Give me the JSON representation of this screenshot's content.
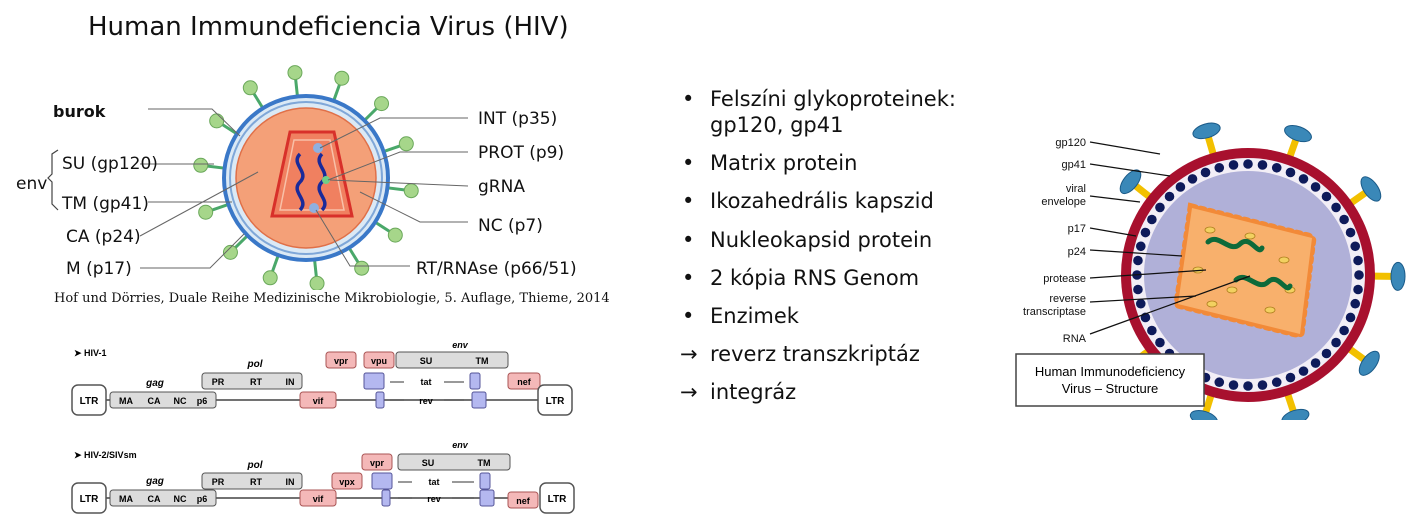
{
  "title": "Human Immundeficiencia  Virus (HIV)",
  "virus_diagram": {
    "labels": {
      "burok": "burok",
      "env": "env",
      "su": "SU (gp120)",
      "tm": "TM (gp41)",
      "ca": "CA (p24)",
      "m": "M (p17)",
      "int": "INT (p35)",
      "prot": "PROT (p9)",
      "grna": "gRNA",
      "nc": "NC (p7)",
      "rt": "RT/RNAse (p66/51)"
    },
    "citation": "Hof und Dörries, Duale Reihe Medizinische Mikrobiologie, 5. Auflage, Thieme, 2014"
  },
  "genome_maps": [
    {
      "name": "HIV-1",
      "genes": {
        "ltr_left": "LTR",
        "gag": "gag",
        "ma": "MA",
        "ca": "CA",
        "nc": "NC",
        "p6": "p6",
        "pol": "pol",
        "pr": "PR",
        "rt": "RT",
        "in": "IN",
        "vif": "vif",
        "vpr": "vpr",
        "vpu": "vpu",
        "env": "env",
        "su": "SU",
        "tm": "TM",
        "tat": "tat",
        "rev": "rev",
        "nef": "nef",
        "ltr_right": "LTR"
      }
    },
    {
      "name": "HIV-2/SIVsm",
      "genes": {
        "ltr_left": "LTR",
        "gag": "gag",
        "ma": "MA",
        "ca": "CA",
        "nc": "NC",
        "p6": "p6",
        "pol": "pol",
        "pr": "PR",
        "rt": "RT",
        "in": "IN",
        "vif": "vif",
        "vpx": "vpx",
        "vpr": "vpr",
        "env": "env",
        "su": "SU",
        "tm": "TM",
        "tat": "tat",
        "rev": "rev",
        "nef": "nef",
        "ltr_right": "LTR"
      }
    }
  ],
  "bullets": [
    {
      "text": "Felszíni glykoproteinek:",
      "text2": "gp120, gp41"
    },
    {
      "text": "Matrix protein"
    },
    {
      "text": "Ikozahedrális  kapszid"
    },
    {
      "text": "Nukleokapsid protein"
    },
    {
      "text": "2 kópia  RNS Genom"
    },
    {
      "text": "Enzimek"
    }
  ],
  "arrow_items": [
    {
      "arrow": "→",
      "text": "reverz transzkriptáz"
    },
    {
      "arrow": "→",
      "text": "integráz"
    }
  ],
  "structure_diagram": {
    "labels": {
      "gp120": "gp120",
      "gp41": "gp41",
      "viral_envelope_1": "viral",
      "viral_envelope_2": "envelope",
      "p17": "p17",
      "p24": "p24",
      "protease": "protease",
      "rt_1": "reverse",
      "rt_2": "transcriptase",
      "rna": "RNA"
    },
    "caption_1": "Human Immunodeficiency",
    "caption_2": "Virus – Structure"
  },
  "colors": {
    "capsid_fill": "#f4a078",
    "envelope_blue": "#3a78c8",
    "spike_green": "#a6d68a",
    "genome_box_gray": "#dcdcdc",
    "genome_box_pink": "#f4b8b8",
    "genome_box_blue": "#b4b8f0",
    "struct_red": "#a8102e",
    "struct_purple": "#b0b0d8"
  }
}
